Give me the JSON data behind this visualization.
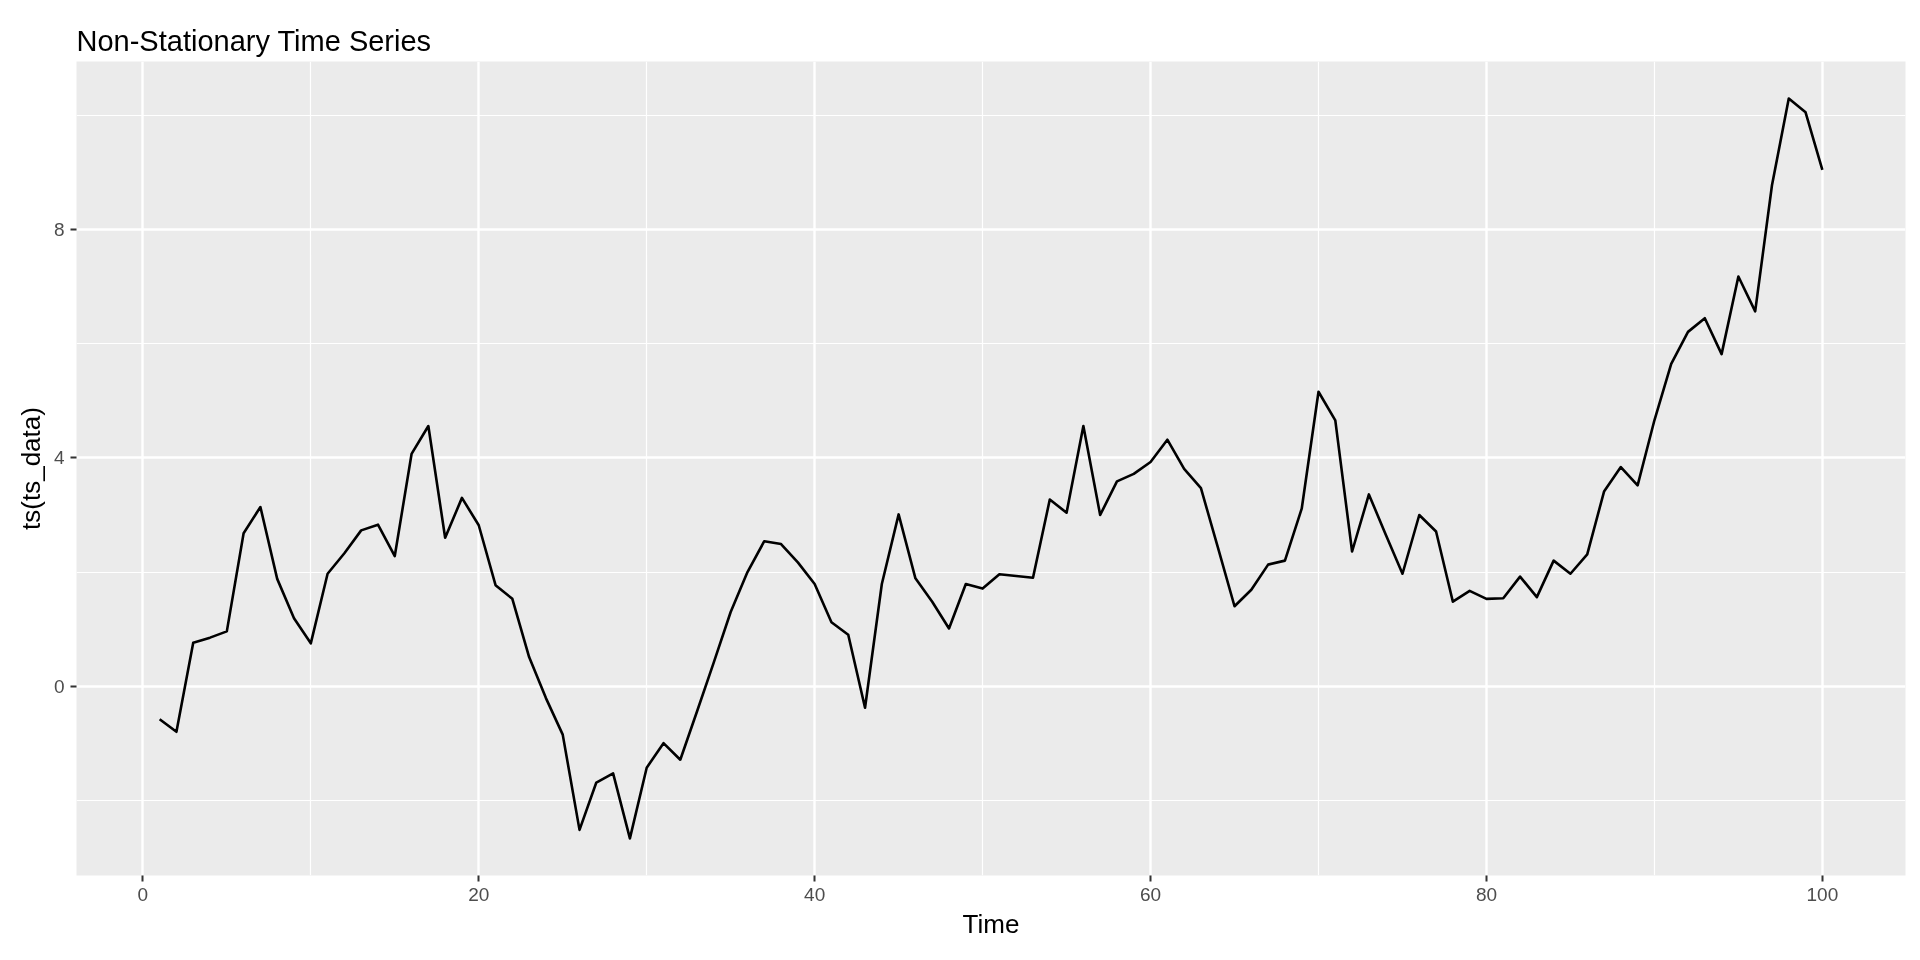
{
  "chart_data": {
    "type": "line",
    "title": "Non-Stationary Time Series",
    "xlabel": "Time",
    "ylabel": "ts(ts_data)",
    "x": [
      1,
      2,
      3,
      4,
      5,
      6,
      7,
      8,
      9,
      10,
      11,
      12,
      13,
      14,
      15,
      16,
      17,
      18,
      19,
      20,
      21,
      22,
      23,
      24,
      25,
      26,
      27,
      28,
      29,
      30,
      31,
      32,
      33,
      34,
      35,
      36,
      37,
      38,
      39,
      40,
      41,
      42,
      43,
      44,
      45,
      46,
      47,
      48,
      49,
      50,
      51,
      52,
      53,
      54,
      55,
      56,
      57,
      58,
      59,
      60,
      61,
      62,
      63,
      64,
      65,
      66,
      67,
      68,
      69,
      70,
      71,
      72,
      73,
      74,
      75,
      76,
      77,
      78,
      79,
      80,
      81,
      82,
      83,
      84,
      85,
      86,
      87,
      88,
      89,
      90,
      91,
      92,
      93,
      94,
      95,
      96,
      97,
      98,
      99,
      100
    ],
    "series": [
      {
        "color": "#000000",
        "values": [
          -0.58,
          -0.8,
          0.76,
          0.85,
          0.96,
          2.68,
          3.14,
          1.88,
          1.19,
          0.75,
          1.97,
          2.33,
          2.73,
          2.83,
          2.28,
          4.07,
          4.56,
          2.6,
          3.3,
          2.82,
          1.77,
          1.53,
          0.51,
          -0.21,
          -0.85,
          -2.52,
          -1.69,
          -1.53,
          -2.67,
          -1.43,
          -1.0,
          -1.29,
          -0.44,
          0.42,
          1.3,
          2.0,
          2.54,
          2.49,
          2.17,
          1.79,
          1.12,
          0.9,
          -0.38,
          1.79,
          3.01,
          1.89,
          1.48,
          1.01,
          1.79,
          1.71,
          1.96,
          1.93,
          1.9,
          3.27,
          3.04,
          4.56,
          3.0,
          3.59,
          3.72,
          3.93,
          4.32,
          3.81,
          3.47,
          2.44,
          1.4,
          1.69,
          2.13,
          2.2,
          3.11,
          5.16,
          4.66,
          2.36,
          3.36,
          2.66,
          1.97,
          3.0,
          2.71,
          1.48,
          1.67,
          1.53,
          1.54,
          1.92,
          1.56,
          2.2,
          1.97,
          2.31,
          3.41,
          3.84,
          3.52,
          4.66,
          5.65,
          6.21,
          6.45,
          5.82,
          7.18,
          6.57,
          8.78,
          10.3,
          10.06,
          9.05
        ]
      }
    ],
    "xlim": [
      -3.95,
      104.95
    ],
    "ylim": [
      -3.32,
      10.95
    ],
    "xticks": [
      0,
      20,
      40,
      60,
      80,
      100
    ],
    "yticks": [
      0,
      4,
      8
    ],
    "grid": true,
    "line_style": "solid"
  }
}
